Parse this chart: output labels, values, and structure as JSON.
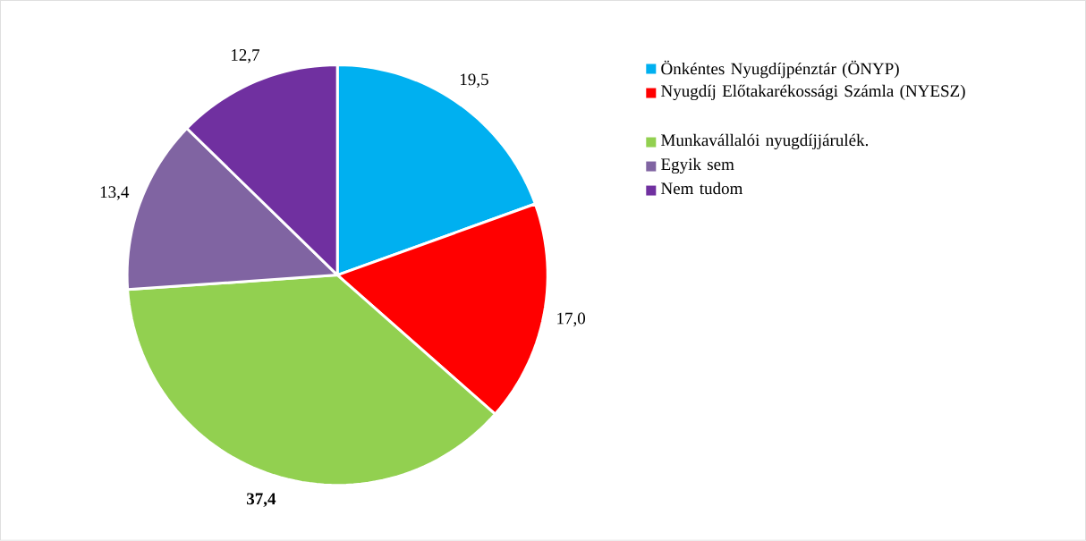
{
  "chart_data": {
    "type": "pie",
    "categories": [
      "Önkéntes Nyugdíjpénztár (ÖNYP)",
      "Nyugdíj Előtakarékossági Számla (NYESZ)",
      "Munkavállalói nyugdíjjárulék.",
      "Egyik sem",
      "Nem tudom"
    ],
    "values": [
      19.5,
      17.0,
      37.4,
      13.4,
      12.7
    ],
    "colors": [
      "#00b0f0",
      "#ff0000",
      "#92d050",
      "#8064a2",
      "#7030a0"
    ],
    "value_labels": [
      "19,5",
      "17,0",
      "**37,4**",
      "13,4",
      "12,7"
    ],
    "legend": "right"
  }
}
